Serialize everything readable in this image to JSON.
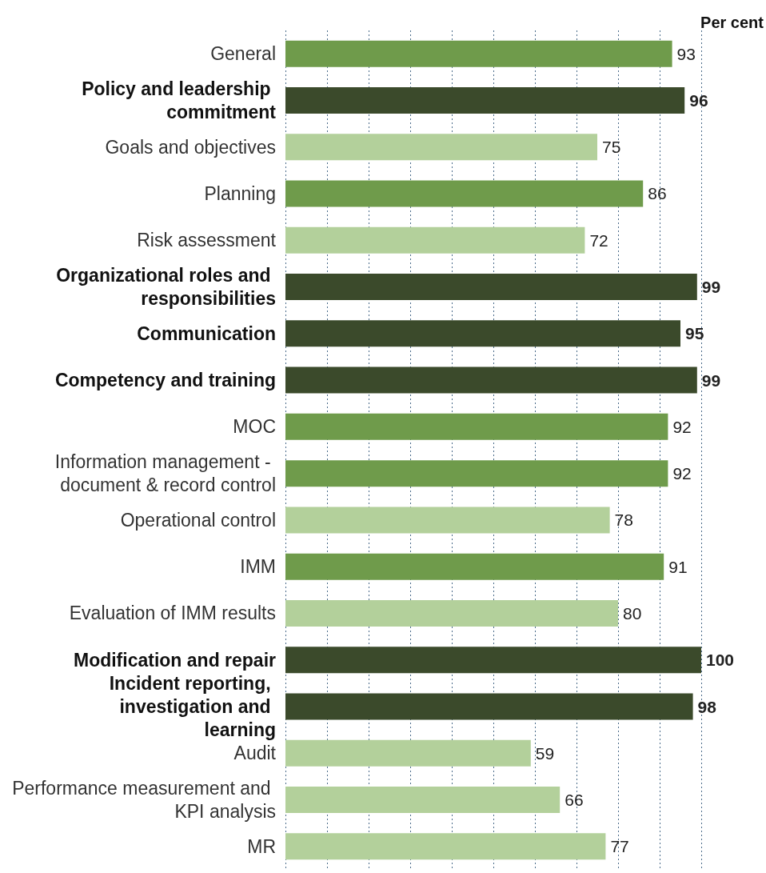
{
  "chart_data": {
    "type": "bar",
    "orientation": "horizontal",
    "xlabel": "Per cent",
    "categories": [
      "General",
      "Policy and leadership commitment",
      "Goals and objectives",
      "Planning",
      "Risk assessment",
      "Organizational roles and responsibilities",
      "Communication",
      "Competency and training",
      "MOC",
      "Information management - document & record control",
      "Operational control",
      "IMM",
      "Evaluation of IMM results",
      "Modification and repair",
      "Incident reporting, investigation and learning",
      "Audit",
      "Performance measurement and KPI analysis",
      "MR"
    ],
    "values": [
      93,
      96,
      75,
      86,
      72,
      99,
      95,
      99,
      92,
      92,
      78,
      91,
      80,
      100,
      98,
      59,
      66,
      77
    ],
    "colors": [
      "#6f9b4b",
      "#3b4a2b",
      "#b3d09b",
      "#6f9b4b",
      "#b3d09b",
      "#3b4a2b",
      "#3b4a2b",
      "#3b4a2b",
      "#6f9b4b",
      "#6f9b4b",
      "#b3d09b",
      "#6f9b4b",
      "#b3d09b",
      "#3b4a2b",
      "#3b4a2b",
      "#b3d09b",
      "#b3d09b",
      "#b3d09b"
    ],
    "xlim": [
      0,
      100
    ],
    "xticks": [
      {
        "value": 0,
        "label": null
      },
      {
        "value": 10,
        "label": null
      },
      {
        "value": 20,
        "label": null
      },
      {
        "value": 30,
        "label": null
      },
      {
        "value": 40,
        "label": null
      },
      {
        "value": 50,
        "label": null
      },
      {
        "value": 60,
        "label": null
      },
      {
        "value": 70,
        "label": null
      },
      {
        "value": 80,
        "label": null
      },
      {
        "value": 90,
        "label": null
      },
      {
        "value": 100,
        "label": null
      }
    ],
    "grid": "x",
    "tick_labels": "y",
    "data_labels": true
  }
}
